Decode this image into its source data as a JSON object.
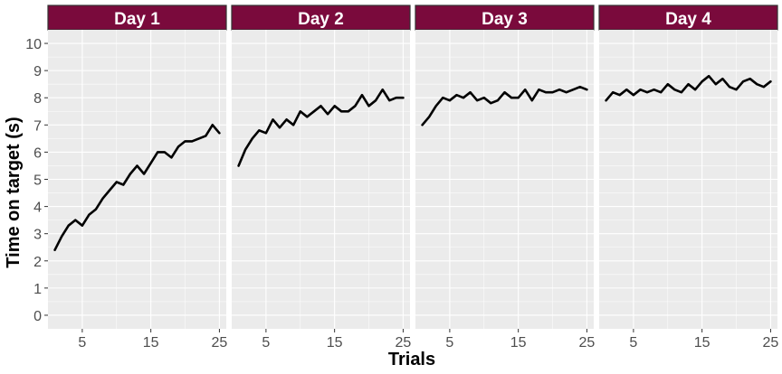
{
  "chart_data": {
    "type": "line",
    "facet_strip_color": "#7a0a3c",
    "panel_background": "#ebebeb",
    "line_color": "#000000",
    "xlabel": "Trials",
    "ylabel": "Time on target (s)",
    "xlim": [
      0,
      26
    ],
    "ylim": [
      -0.5,
      10.5
    ],
    "x_ticks": [
      5,
      15,
      25
    ],
    "y_ticks": [
      0,
      1,
      2,
      3,
      4,
      5,
      6,
      7,
      8,
      9,
      10
    ],
    "grid": true,
    "panels": [
      {
        "label": "Day 1",
        "x": [
          1,
          2,
          3,
          4,
          5,
          6,
          7,
          8,
          9,
          10,
          11,
          12,
          13,
          14,
          15,
          16,
          17,
          18,
          19,
          20,
          21,
          22,
          23,
          24,
          25
        ],
        "y": [
          2.4,
          2.9,
          3.3,
          3.5,
          3.3,
          3.7,
          3.9,
          4.3,
          4.6,
          4.9,
          4.8,
          5.2,
          5.5,
          5.2,
          5.6,
          6.0,
          6.0,
          5.8,
          6.2,
          6.4,
          6.4,
          6.5,
          6.6,
          7.0,
          6.7
        ]
      },
      {
        "label": "Day 2",
        "x": [
          1,
          2,
          3,
          4,
          5,
          6,
          7,
          8,
          9,
          10,
          11,
          12,
          13,
          14,
          15,
          16,
          17,
          18,
          19,
          20,
          21,
          22,
          23,
          24,
          25
        ],
        "y": [
          5.5,
          6.1,
          6.5,
          6.8,
          6.7,
          7.2,
          6.9,
          7.2,
          7.0,
          7.5,
          7.3,
          7.5,
          7.7,
          7.4,
          7.7,
          7.5,
          7.5,
          7.7,
          8.1,
          7.7,
          7.9,
          8.3,
          7.9,
          8.0,
          8.0
        ]
      },
      {
        "label": "Day 3",
        "x": [
          1,
          2,
          3,
          4,
          5,
          6,
          7,
          8,
          9,
          10,
          11,
          12,
          13,
          14,
          15,
          16,
          17,
          18,
          19,
          20,
          21,
          22,
          23,
          24,
          25
        ],
        "y": [
          7.0,
          7.3,
          7.7,
          8.0,
          7.9,
          8.1,
          8.0,
          8.2,
          7.9,
          8.0,
          7.8,
          7.9,
          8.2,
          8.0,
          8.0,
          8.3,
          7.9,
          8.3,
          8.2,
          8.2,
          8.3,
          8.2,
          8.3,
          8.4,
          8.3
        ]
      },
      {
        "label": "Day 4",
        "x": [
          1,
          2,
          3,
          4,
          5,
          6,
          7,
          8,
          9,
          10,
          11,
          12,
          13,
          14,
          15,
          16,
          17,
          18,
          19,
          20,
          21,
          22,
          23,
          24,
          25
        ],
        "y": [
          7.9,
          8.2,
          8.1,
          8.3,
          8.1,
          8.3,
          8.2,
          8.3,
          8.2,
          8.5,
          8.3,
          8.2,
          8.5,
          8.3,
          8.6,
          8.8,
          8.5,
          8.7,
          8.4,
          8.3,
          8.6,
          8.7,
          8.5,
          8.4,
          8.6
        ]
      }
    ]
  }
}
